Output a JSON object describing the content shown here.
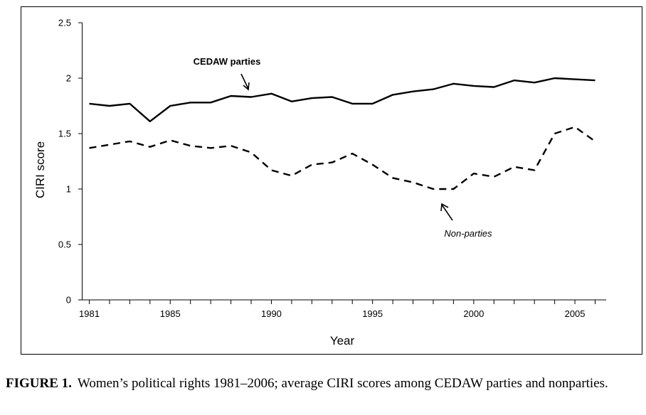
{
  "chart_data": {
    "type": "line",
    "xlabel": "Year",
    "ylabel": "CIRI score",
    "ylim": [
      0,
      2.5
    ],
    "xlim": [
      1981,
      2006
    ],
    "yticks": [
      "0",
      "0.5",
      "1",
      "1.5",
      "2",
      "2.5"
    ],
    "xticks": [
      "1981",
      "1985",
      "1990",
      "1995",
      "2000",
      "2005"
    ],
    "grid": false,
    "x": [
      1981,
      1982,
      1983,
      1984,
      1985,
      1986,
      1987,
      1988,
      1989,
      1990,
      1991,
      1992,
      1993,
      1994,
      1995,
      1996,
      1997,
      1998,
      1999,
      2000,
      2001,
      2002,
      2003,
      2004,
      2005,
      2006
    ],
    "series": [
      {
        "name": "CEDAW parties",
        "style": "solid",
        "color": "#000000",
        "values": [
          1.77,
          1.75,
          1.77,
          1.61,
          1.75,
          1.78,
          1.78,
          1.84,
          1.83,
          1.86,
          1.79,
          1.82,
          1.83,
          1.77,
          1.77,
          1.85,
          1.88,
          1.9,
          1.95,
          1.93,
          1.92,
          1.98,
          1.96,
          2.0,
          1.99,
          1.98
        ]
      },
      {
        "name": "Non-parties",
        "style": "dashed",
        "color": "#000000",
        "values": [
          1.37,
          1.4,
          1.43,
          1.38,
          1.44,
          1.39,
          1.37,
          1.39,
          1.33,
          1.17,
          1.12,
          1.22,
          1.24,
          1.32,
          1.22,
          1.1,
          1.06,
          1.0,
          1.0,
          1.14,
          1.11,
          1.2,
          1.17,
          1.5,
          1.56,
          1.43
        ]
      }
    ],
    "annotations": [
      {
        "text": "CEDAW parties",
        "style": "bold",
        "points_to": [
          1989,
          1.83
        ]
      },
      {
        "text": "Non-parties",
        "style": "italic",
        "points_to": [
          1998.2,
          0.88
        ]
      }
    ]
  },
  "caption": {
    "label": "FIGURE 1.",
    "text": "Women’s political rights 1981–2006; average CIRI scores among CEDAW parties and nonparties."
  }
}
